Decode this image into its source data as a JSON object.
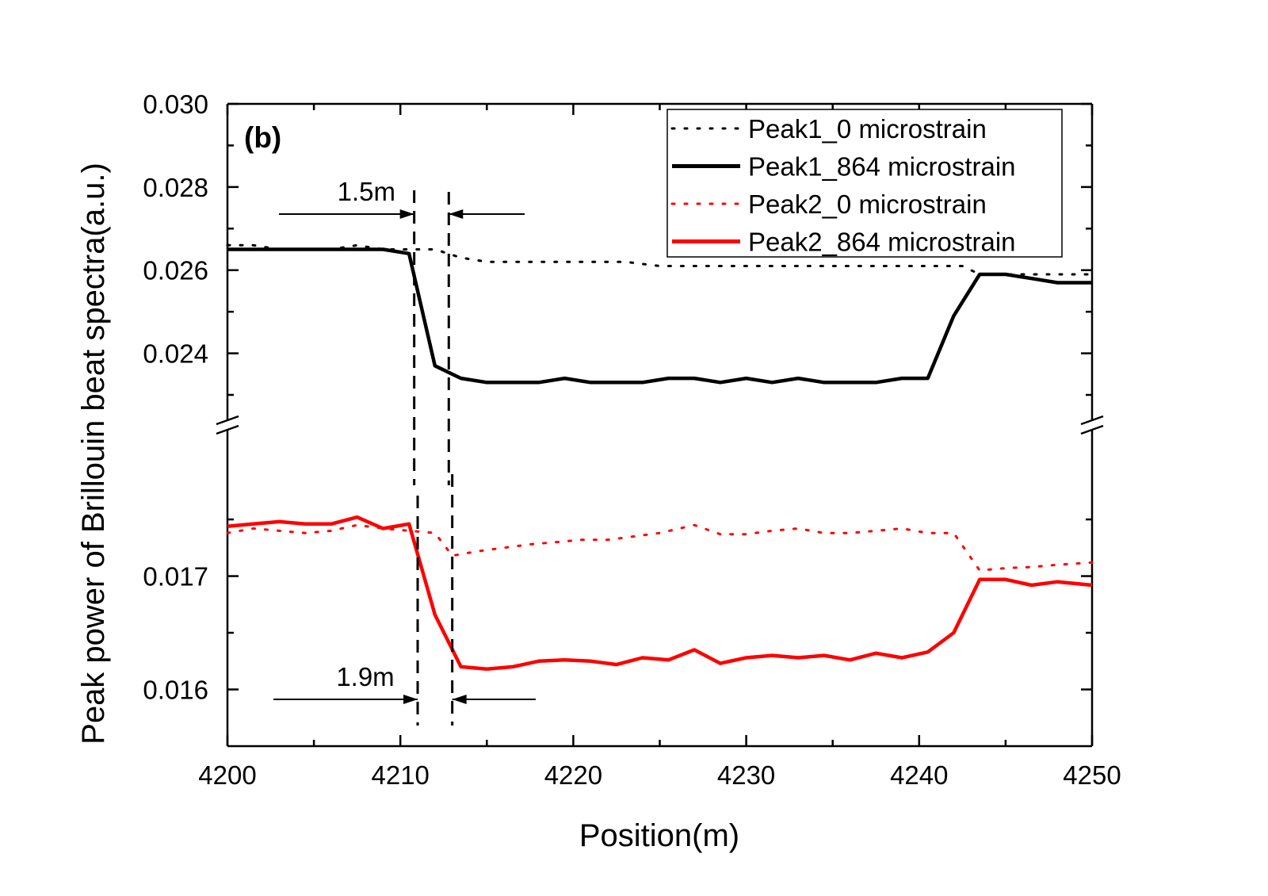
{
  "chart_data": {
    "type": "line",
    "panel_label": "(b)",
    "xlabel": "Position(m)",
    "ylabel": "Peak power of Brillouin beat spectra(a.u.)",
    "xlim": [
      4200,
      4250
    ],
    "x_ticks": [
      "4200",
      "4210",
      "4220",
      "4230",
      "4240",
      "4250"
    ],
    "axis_break": true,
    "upper_segment": {
      "ylim": [
        0.0226,
        0.03
      ],
      "y_ticks": [
        "0.024",
        "0.026",
        "0.028",
        "0.030"
      ],
      "y_tick_values": [
        0.024,
        0.026,
        0.028,
        0.03
      ]
    },
    "lower_segment": {
      "ylim": [
        0.0155,
        0.0182
      ],
      "y_ticks": [
        "0.016",
        "0.017"
      ],
      "y_tick_values": [
        0.016,
        0.017
      ]
    },
    "grid": false,
    "legend_position": "top-right",
    "series": [
      {
        "name": "Peak1_0 microstrain",
        "segment": "upper",
        "style": "dotted",
        "color": "#000000",
        "x": [
          4200,
          4201.5,
          4203,
          4204.5,
          4206,
          4207.5,
          4209,
          4210.5,
          4212,
          4213.5,
          4215,
          4217,
          4219,
          4221,
          4223,
          4225,
          4227,
          4229,
          4231,
          4233,
          4235,
          4237,
          4239,
          4241,
          4242.5,
          4243.5,
          4245,
          4246.5,
          4248,
          4250
        ],
        "y": [
          0.0266,
          0.0266,
          0.0265,
          0.0265,
          0.0265,
          0.0266,
          0.0265,
          0.0265,
          0.0265,
          0.0263,
          0.0262,
          0.0262,
          0.0262,
          0.0262,
          0.0262,
          0.0261,
          0.0261,
          0.0261,
          0.0261,
          0.0261,
          0.0261,
          0.0261,
          0.0261,
          0.0261,
          0.0261,
          0.0259,
          0.0259,
          0.0259,
          0.0259,
          0.0259
        ]
      },
      {
        "name": "Peak1_864 microstrain",
        "segment": "upper",
        "style": "solid",
        "color": "#000000",
        "x": [
          4200,
          4201.5,
          4203,
          4204.5,
          4206,
          4207.5,
          4209,
          4210.5,
          4212,
          4213.5,
          4215,
          4216.5,
          4218,
          4219.5,
          4221,
          4222.5,
          4224,
          4225.5,
          4227,
          4228.5,
          4230,
          4231.5,
          4233,
          4234.5,
          4236,
          4237.5,
          4239,
          4240.5,
          4242,
          4243.5,
          4245,
          4246.5,
          4248,
          4250
        ],
        "y": [
          0.0265,
          0.0265,
          0.0265,
          0.0265,
          0.0265,
          0.0265,
          0.0265,
          0.0264,
          0.0237,
          0.0234,
          0.0233,
          0.0233,
          0.0233,
          0.0234,
          0.0233,
          0.0233,
          0.0233,
          0.0234,
          0.0234,
          0.0233,
          0.0234,
          0.0233,
          0.0234,
          0.0233,
          0.0233,
          0.0233,
          0.0234,
          0.0234,
          0.0249,
          0.0259,
          0.0259,
          0.0258,
          0.0257,
          0.0257
        ]
      },
      {
        "name": "Peak2_0 microstrain",
        "segment": "lower",
        "style": "dotted",
        "color": "#ff0000",
        "x": [
          4200,
          4201.5,
          4203,
          4204.5,
          4206,
          4207.5,
          4209,
          4210.5,
          4212,
          4213,
          4214.5,
          4216,
          4217.5,
          4219,
          4220.5,
          4222,
          4223.5,
          4225,
          4227,
          4228.5,
          4230,
          4231.5,
          4233,
          4234.5,
          4236,
          4237.5,
          4239,
          4240.5,
          4242,
          4243.5,
          4245,
          4246.5,
          4248,
          4250
        ],
        "y": [
          0.01738,
          0.01742,
          0.0174,
          0.01738,
          0.0174,
          0.01745,
          0.01742,
          0.0174,
          0.01738,
          0.01718,
          0.01722,
          0.01725,
          0.01728,
          0.0173,
          0.01732,
          0.01732,
          0.01735,
          0.01738,
          0.01745,
          0.01737,
          0.01737,
          0.0174,
          0.01742,
          0.01738,
          0.01738,
          0.0174,
          0.01742,
          0.01738,
          0.01738,
          0.01705,
          0.01707,
          0.01708,
          0.0171,
          0.01712
        ]
      },
      {
        "name": "Peak2_864 microstrain",
        "segment": "lower",
        "style": "solid",
        "color": "#ff0000",
        "x": [
          4200,
          4201.5,
          4203,
          4204.5,
          4206,
          4207.5,
          4209,
          4210.5,
          4212,
          4213.5,
          4215,
          4216.5,
          4218,
          4219.5,
          4221,
          4222.5,
          4224,
          4225.5,
          4227,
          4228.5,
          4230,
          4231.5,
          4233,
          4234.5,
          4236,
          4237.5,
          4239,
          4240.5,
          4242,
          4243.5,
          4245,
          4246.5,
          4248,
          4250
        ],
        "y": [
          0.01744,
          0.01746,
          0.01748,
          0.01746,
          0.01746,
          0.01752,
          0.01742,
          0.01746,
          0.01666,
          0.0162,
          0.01618,
          0.0162,
          0.01625,
          0.01626,
          0.01625,
          0.01622,
          0.01628,
          0.01626,
          0.01635,
          0.01623,
          0.01628,
          0.0163,
          0.01628,
          0.0163,
          0.01626,
          0.01632,
          0.01628,
          0.01633,
          0.0165,
          0.01697,
          0.01697,
          0.01692,
          0.01695,
          0.01692
        ]
      }
    ],
    "annotations": [
      {
        "text": "1.5m",
        "segment": "upper",
        "x_left": 4210.8,
        "x_right": 4212.8,
        "y": 0.0274
      },
      {
        "text": "1.9m",
        "segment": "lower",
        "x_left": 4211,
        "x_right": 4213,
        "y": 0.01587
      }
    ]
  }
}
